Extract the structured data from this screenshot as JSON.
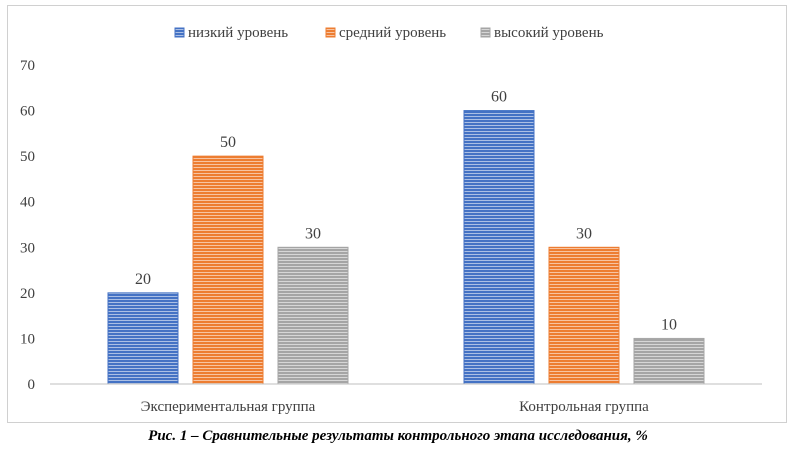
{
  "chart_data": {
    "type": "bar",
    "categories": [
      "Экспериментальная группа",
      "Контрольная группа"
    ],
    "series": [
      {
        "name": "низкий уровень",
        "values": [
          20,
          60
        ],
        "color": "#4472c4"
      },
      {
        "name": "средний уровень",
        "values": [
          50,
          30
        ],
        "color": "#ed7d31"
      },
      {
        "name": "высокий уровень",
        "values": [
          30,
          10
        ],
        "color": "#a5a5a5"
      }
    ],
    "ylim": [
      0,
      70
    ],
    "yticks": [
      0,
      10,
      20,
      30,
      40,
      50,
      60,
      70
    ],
    "grid": false,
    "legend": "top-center",
    "data_labels": true
  },
  "caption": "Рис. 1 – Сравнительные результаты контрольного этапа исследования, %"
}
